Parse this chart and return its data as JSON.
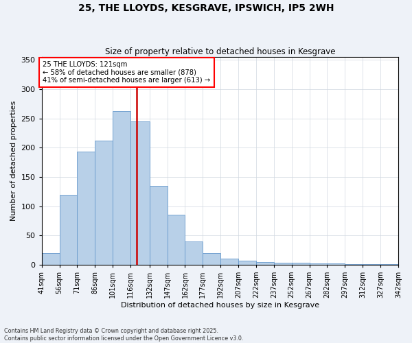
{
  "title": "25, THE LLOYDS, KESGRAVE, IPSWICH, IP5 2WH",
  "subtitle": "Size of property relative to detached houses in Kesgrave",
  "xlabel": "Distribution of detached houses by size in Kesgrave",
  "ylabel": "Number of detached properties",
  "bins": [
    41,
    56,
    71,
    86,
    101,
    116,
    132,
    147,
    162,
    177,
    192,
    207,
    222,
    237,
    252,
    267,
    282,
    297,
    312,
    327,
    342
  ],
  "bin_labels": [
    "41sqm",
    "56sqm",
    "71sqm",
    "86sqm",
    "101sqm",
    "116sqm",
    "132sqm",
    "147sqm",
    "162sqm",
    "177sqm",
    "192sqm",
    "207sqm",
    "222sqm",
    "237sqm",
    "252sqm",
    "267sqm",
    "282sqm",
    "297sqm",
    "312sqm",
    "327sqm",
    "342sqm"
  ],
  "values": [
    20,
    120,
    193,
    212,
    262,
    245,
    135,
    85,
    40,
    20,
    10,
    7,
    5,
    4,
    3,
    2,
    2,
    1,
    1,
    1
  ],
  "bar_color": "#b8d0e8",
  "bar_edge_color": "#6699cc",
  "property_size": 121,
  "annotation_text": "25 THE LLOYDS: 121sqm\n← 58% of detached houses are smaller (878)\n41% of semi-detached houses are larger (613) →",
  "vline_color": "#cc0000",
  "ylim": [
    0,
    355
  ],
  "yticks": [
    0,
    50,
    100,
    150,
    200,
    250,
    300,
    350
  ],
  "footnote1": "Contains HM Land Registry data © Crown copyright and database right 2025.",
  "footnote2": "Contains public sector information licensed under the Open Government Licence v3.0.",
  "bg_color": "#eef2f8",
  "plot_bg_color": "#ffffff",
  "title_fontsize": 10,
  "subtitle_fontsize": 8.5,
  "ylabel_fontsize": 8,
  "xlabel_fontsize": 8,
  "tick_fontsize": 7,
  "ytick_fontsize": 8,
  "footnote_fontsize": 5.8
}
